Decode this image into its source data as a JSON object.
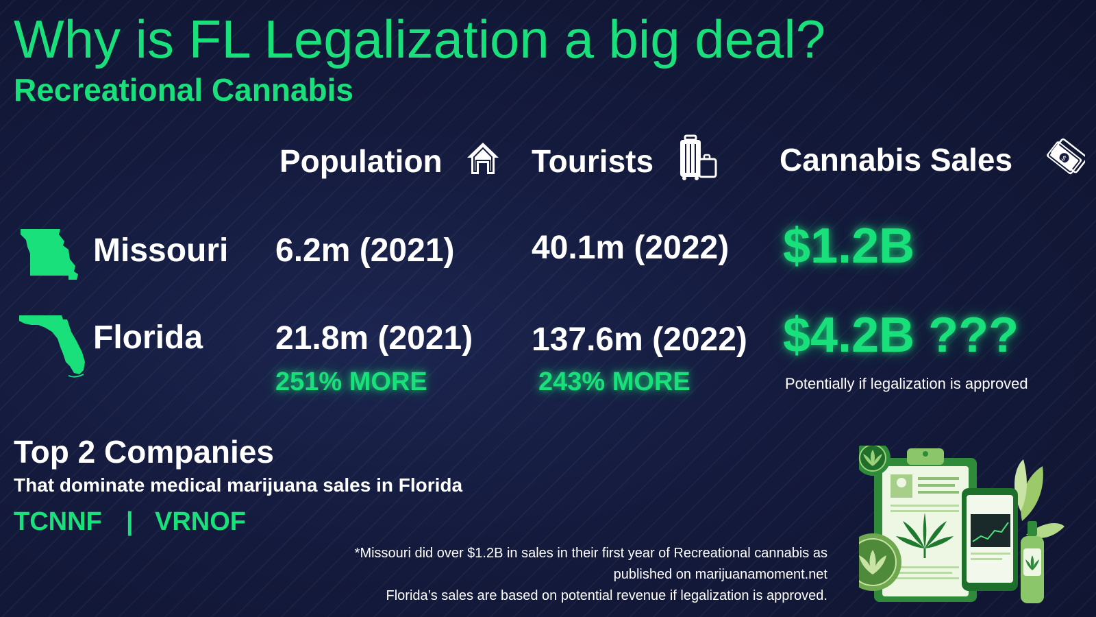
{
  "header": {
    "title": "Why is FL Legalization a big deal?",
    "subtitle": "Recreational Cannabis"
  },
  "columns": {
    "population": "Population",
    "tourists": "Tourists",
    "sales": "Cannabis Sales"
  },
  "rows": {
    "missouri": {
      "state": "Missouri",
      "population": "6.2m (2021)",
      "tourists": "40.1m (2022)",
      "sales": "$1.2B"
    },
    "florida": {
      "state": "Florida",
      "population": "21.8m (2021)",
      "population_more": "251% MORE",
      "tourists": "137.6m (2022)",
      "tourists_more": "243% MORE",
      "sales": "$4.2B ???",
      "sales_note": "Potentially if legalization is approved"
    }
  },
  "companies": {
    "heading": "Top 2 Companies",
    "subheading": "That dominate medical marijuana sales in Florida",
    "ticker1": "TCNNF",
    "separator": "|",
    "ticker2": "VRNOF"
  },
  "footnotes": {
    "line1": "*Missouri did over $1.2B in sales in their first year of Recreational cannabis as",
    "line2": "published on marijuanamoment.net",
    "line3": "Florida’s sales are based on potential revenue if legalization is approved."
  },
  "icons": {
    "population": "house-icon",
    "tourists": "luggage-icon",
    "sales": "money-icon",
    "missouri": "missouri-map-icon",
    "florida": "florida-map-icon",
    "illustration": "medical-cannabis-illustration"
  },
  "colors": {
    "accent": "#19e07a",
    "background": "#141a3c",
    "text": "#ffffff"
  }
}
